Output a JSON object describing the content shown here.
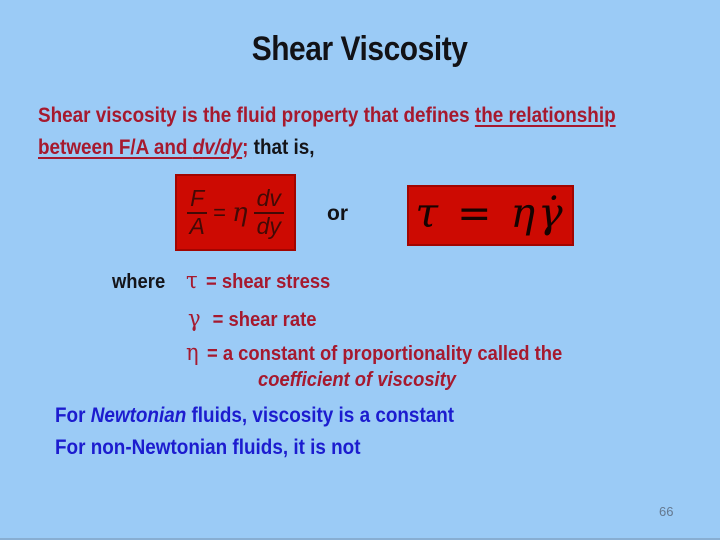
{
  "slide": {
    "title": "Shear Viscosity",
    "page_number": "66",
    "colors": {
      "background": "#9BCBF6",
      "dark_red_text": "#A6192E",
      "equation_box_red": "#CD0A02",
      "blue_text": "#1C1CCF",
      "black_text": "#141418"
    }
  },
  "intro": {
    "seg_plain": "Shear viscosity is the fluid property that defines ",
    "seg_underline_1": "the relationship",
    "seg_underline_2": "between F/A and ",
    "seg_underline_italic": "dv/dy",
    "seg_semicolon": ";",
    "seg_black": " that is,"
  },
  "equation_left": {
    "frac1_num": "F",
    "frac1_den": "A",
    "equals": "=",
    "eta": "η",
    "frac2_num": "dv",
    "frac2_den": "dy"
  },
  "or_label": "or",
  "equation_right": {
    "formula": "τ = ηγ̇"
  },
  "where": {
    "label": "where",
    "lines": [
      {
        "symbol": "τ",
        "text": "= shear stress"
      },
      {
        "symbol": "γ",
        "text": "= shear rate"
      },
      {
        "symbol": "η",
        "text": "= a constant of proportionality called the"
      }
    ],
    "continuation": "coefficient of viscosity"
  },
  "newtonian": {
    "line1_prefix": "For ",
    "line1_italic": "Newtonian",
    "line1_suffix": " fluids, viscosity is a constant",
    "line2": "For non-Newtonian fluids, it is not"
  }
}
